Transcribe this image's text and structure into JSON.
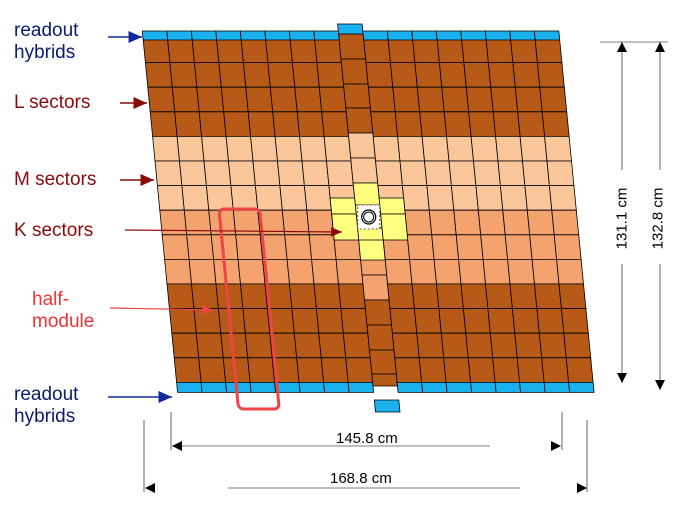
{
  "colors": {
    "L": "#b85a17",
    "M": "#fbc79a",
    "outer": "#f5a36e",
    "K": "#ffff80",
    "hybrid": "#1ab2ee",
    "half_module": "#ee4444",
    "label_red": "#8a0b0b",
    "label_blue": "#0b1a6e",
    "arrow_blue": "#102a9a"
  },
  "labels": {
    "readout_top": [
      "readout",
      "hybrids"
    ],
    "L": "L sectors",
    "M": "M sectors",
    "K": "K sectors",
    "half_module": [
      "half-",
      "module"
    ],
    "readout_bottom": [
      "readout",
      "hybrids"
    ]
  },
  "dimensions": {
    "height_inner": "131.1 cm",
    "height_outer": "132.8 cm",
    "width_inner": "145.8 cm",
    "width_outer": "168.8 cm"
  }
}
